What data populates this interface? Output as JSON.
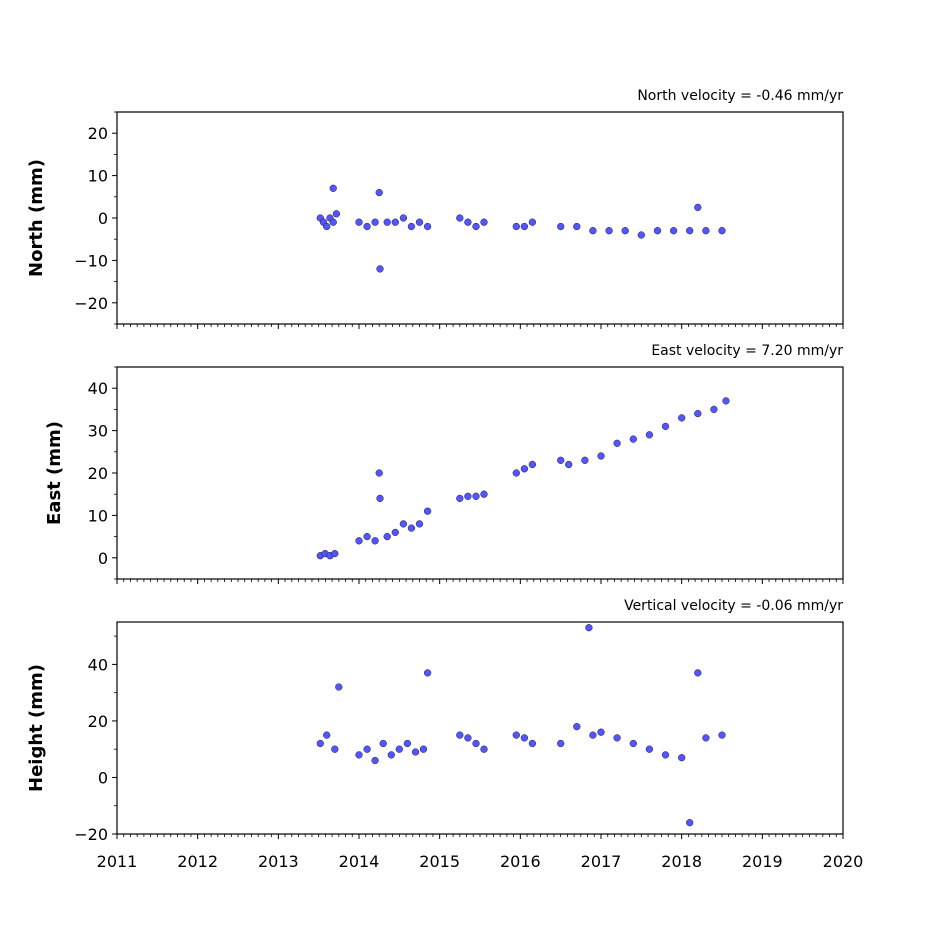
{
  "chart_data": [
    {
      "type": "scatter",
      "ylabel": "North (mm)",
      "annotation": "North velocity = -0.46 mm/yr",
      "xlim": [
        2011,
        2020
      ],
      "ylim": [
        -25,
        25
      ],
      "yticks": [
        -20,
        -10,
        0,
        10,
        20
      ],
      "xticks": [
        2011,
        2012,
        2013,
        2014,
        2015,
        2016,
        2017,
        2018,
        2019,
        2020
      ],
      "xtick_labels_shown": false,
      "marker_color": "#5555ff",
      "series": [
        {
          "x": [
            2013.52,
            2013.56,
            2013.6,
            2013.64,
            2013.68,
            2013.72,
            2013.68,
            2014.0,
            2014.1,
            2014.2,
            2014.25,
            2014.26,
            2014.35,
            2014.45,
            2014.55,
            2014.65,
            2014.75,
            2014.85,
            2015.25,
            2015.35,
            2015.45,
            2015.55,
            2015.95,
            2016.05,
            2016.15,
            2016.5,
            2016.7,
            2016.9,
            2017.1,
            2017.3,
            2017.5,
            2017.7,
            2017.9,
            2018.1,
            2018.2,
            2018.3,
            2018.5
          ],
          "y": [
            0,
            -1,
            -2,
            0,
            -1,
            1,
            7,
            -1,
            -2,
            -1,
            6,
            -12,
            -1,
            -1,
            0,
            -2,
            -1,
            -2,
            0,
            -1,
            -2,
            -1,
            -2,
            -2,
            -1,
            -2,
            -2,
            -3,
            -3,
            -3,
            -4,
            -3,
            -3,
            -3,
            2.5,
            -3,
            -3
          ]
        }
      ]
    },
    {
      "type": "scatter",
      "ylabel": "East (mm)",
      "annotation": "East velocity = 7.20 mm/yr",
      "xlim": [
        2011,
        2020
      ],
      "ylim": [
        -5,
        45
      ],
      "yticks": [
        0,
        10,
        20,
        30,
        40
      ],
      "xticks": [
        2011,
        2012,
        2013,
        2014,
        2015,
        2016,
        2017,
        2018,
        2019,
        2020
      ],
      "xtick_labels_shown": false,
      "marker_color": "#5555ff",
      "series": [
        {
          "x": [
            2013.52,
            2013.58,
            2013.64,
            2013.7,
            2014.0,
            2014.1,
            2014.2,
            2014.25,
            2014.26,
            2014.35,
            2014.45,
            2014.55,
            2014.65,
            2014.75,
            2014.85,
            2015.25,
            2015.35,
            2015.45,
            2015.55,
            2015.95,
            2016.05,
            2016.15,
            2016.5,
            2016.6,
            2016.8,
            2017.0,
            2017.2,
            2017.4,
            2017.6,
            2017.8,
            2018.0,
            2018.2,
            2018.4,
            2018.55
          ],
          "y": [
            0.5,
            1,
            0.5,
            1,
            4,
            5,
            4,
            20,
            14,
            5,
            6,
            8,
            7,
            8,
            11,
            14,
            14.5,
            14.5,
            15,
            20,
            21,
            22,
            23,
            22,
            23,
            24,
            27,
            28,
            29,
            31,
            33,
            34,
            35,
            37
          ]
        }
      ]
    },
    {
      "type": "scatter",
      "ylabel": "Height (mm)",
      "annotation": "Vertical velocity = -0.06 mm/yr",
      "xlim": [
        2011,
        2020
      ],
      "ylim": [
        -20,
        55
      ],
      "yticks": [
        -20,
        0,
        20,
        40
      ],
      "xticks": [
        2011,
        2012,
        2013,
        2014,
        2015,
        2016,
        2017,
        2018,
        2019,
        2020
      ],
      "xtick_labels": [
        "2011",
        "2012",
        "2013",
        "2014",
        "2015",
        "2016",
        "2017",
        "2018",
        "2019",
        "2020"
      ],
      "marker_color": "#5555ff",
      "series": [
        {
          "x": [
            2013.52,
            2013.6,
            2013.7,
            2013.75,
            2014.0,
            2014.1,
            2014.2,
            2014.3,
            2014.4,
            2014.5,
            2014.6,
            2014.7,
            2014.8,
            2014.85,
            2015.25,
            2015.35,
            2015.45,
            2015.55,
            2015.95,
            2016.05,
            2016.15,
            2016.5,
            2016.7,
            2016.85,
            2016.9,
            2017.0,
            2017.2,
            2017.4,
            2017.6,
            2017.8,
            2018.0,
            2018.1,
            2018.2,
            2018.3,
            2018.5
          ],
          "y": [
            12,
            15,
            10,
            32,
            8,
            10,
            6,
            12,
            8,
            10,
            12,
            9,
            10,
            37,
            15,
            14,
            12,
            10,
            15,
            14,
            12,
            12,
            18,
            53,
            15,
            16,
            14,
            12,
            10,
            8,
            7,
            -16,
            37,
            14,
            15
          ]
        }
      ]
    }
  ]
}
